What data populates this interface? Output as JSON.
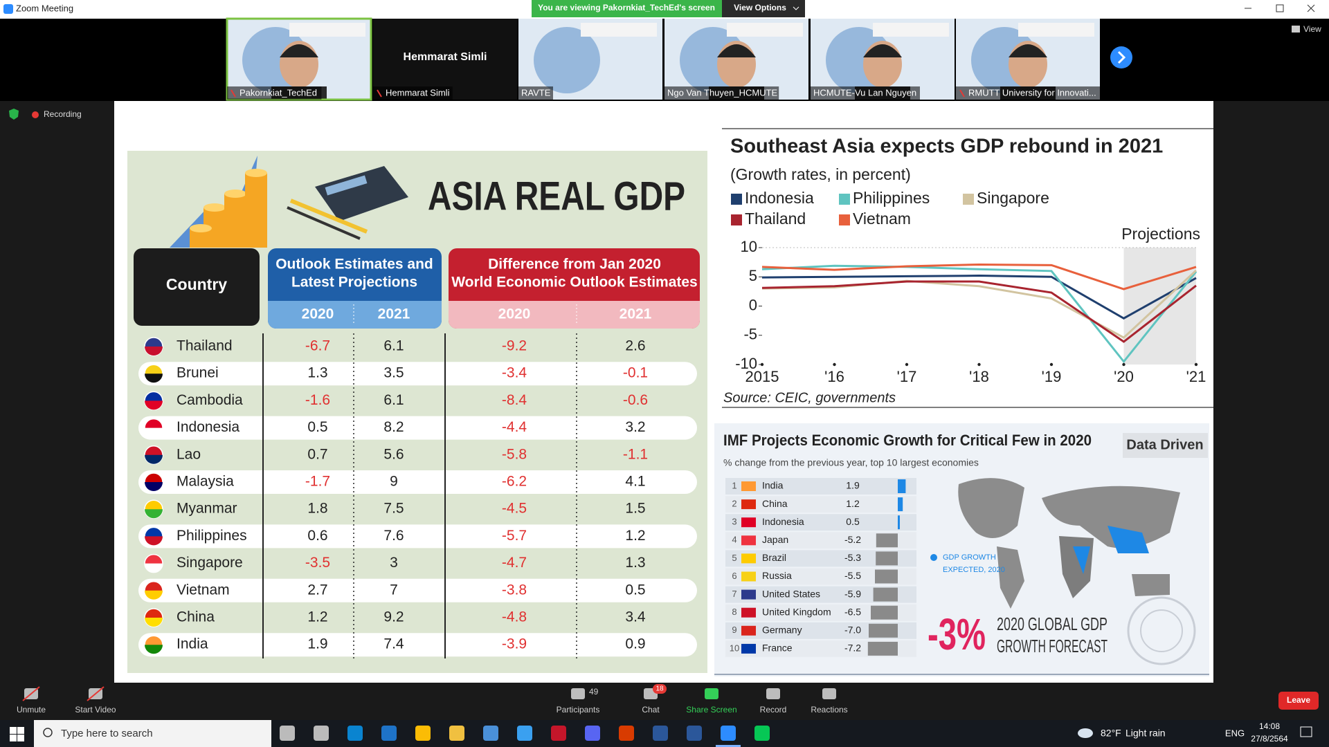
{
  "window": {
    "title": "Zoom Meeting",
    "view": "View"
  },
  "banner": {
    "text": "You are viewing Pakornkiat_TechEd's screen",
    "options": "View Options"
  },
  "recording": "Recording",
  "tiles": [
    {
      "label": "Pakornkiat_TechEd"
    },
    {
      "label": "Hemmarat Simli",
      "name": "Hemmarat Simli"
    },
    {
      "label": "RAVTE"
    },
    {
      "label": "Ngo Van Thuyen_HCMUTE"
    },
    {
      "label": "HCMUTE-Vu Lan Nguyen"
    },
    {
      "label": "RMUTT University for Innovati..."
    }
  ],
  "slide": {
    "table": {
      "title": "ASIA REAL GDP",
      "country_header": "Country",
      "outlook_header": [
        "Outlook Estimates and",
        "Latest Projections"
      ],
      "difference_header": [
        "Difference from Jan 2020",
        "World Economic Outlook Estimates"
      ],
      "years": [
        "2020",
        "2021",
        "2020",
        "2021"
      ],
      "rows": [
        {
          "country": "Thailand",
          "values": [
            "-6.7",
            "6.1",
            "-9.2",
            "2.6"
          ]
        },
        {
          "country": "Brunei",
          "values": [
            "1.3",
            "3.5",
            "-3.4",
            "-0.1"
          ]
        },
        {
          "country": "Cambodia",
          "values": [
            "-1.6",
            "6.1",
            "-8.4",
            "-0.6"
          ]
        },
        {
          "country": "Indonesia",
          "values": [
            "0.5",
            "8.2",
            "-4.4",
            "3.2"
          ]
        },
        {
          "country": "Lao",
          "values": [
            "0.7",
            "5.6",
            "-5.8",
            "-1.1"
          ]
        },
        {
          "country": "Malaysia",
          "values": [
            "-1.7",
            "9",
            "-6.2",
            "4.1"
          ]
        },
        {
          "country": "Myanmar",
          "values": [
            "1.8",
            "7.5",
            "-4.5",
            "1.5"
          ]
        },
        {
          "country": "Philippines",
          "values": [
            "0.6",
            "7.6",
            "-5.7",
            "1.2"
          ]
        },
        {
          "country": "Singapore",
          "values": [
            "-3.5",
            "3",
            "-4.7",
            "1.3"
          ]
        },
        {
          "country": "Vietnam",
          "values": [
            "2.7",
            "7",
            "-3.8",
            "0.5"
          ]
        },
        {
          "country": "China",
          "values": [
            "1.2",
            "9.2",
            "-4.8",
            "3.4"
          ]
        },
        {
          "country": "India",
          "values": [
            "1.9",
            "7.4",
            "-3.9",
            "0.9"
          ]
        }
      ]
    },
    "gdp_chart": {
      "type": "line",
      "title": "Southeast Asia expects GDP rebound in 2021",
      "subtitle": "(Growth rates, in percent)",
      "x": [
        2015,
        2016,
        2017,
        2018,
        2019,
        2020,
        2021
      ],
      "xlim": [
        2015,
        2021
      ],
      "xticks": [
        2015,
        {
          "value": 2016,
          "label": "'16"
        },
        {
          "value": 2017,
          "label": "'17"
        },
        {
          "value": 2018,
          "label": "'18"
        },
        {
          "value": 2019,
          "label": "'19"
        },
        {
          "value": 2020,
          "label": "'20"
        },
        {
          "value": 2021,
          "label": "'21"
        }
      ],
      "ylim": [
        -10,
        10
      ],
      "yticks": [
        -10,
        -5,
        0,
        5,
        10
      ],
      "projection_label": "Projections",
      "projection_start": 2020,
      "series": [
        {
          "name": "Indonesia",
          "color": "#1f3f6e",
          "values": [
            4.9,
            5.0,
            5.1,
            5.2,
            5.0,
            -2.1,
            4.8
          ]
        },
        {
          "name": "Philippines",
          "color": "#5fc4c0",
          "values": [
            6.3,
            6.9,
            6.7,
            6.3,
            6.0,
            -9.5,
            5.9
          ]
        },
        {
          "name": "Singapore",
          "color": "#d2c4a0",
          "values": [
            3.0,
            3.2,
            4.3,
            3.4,
            1.3,
            -5.4,
            6.1
          ]
        },
        {
          "name": "Thailand",
          "color": "#a8242f",
          "values": [
            3.1,
            3.4,
            4.2,
            4.2,
            2.3,
            -6.1,
            3.5
          ]
        },
        {
          "name": "Vietnam",
          "color": "#e8603c",
          "values": [
            6.7,
            6.2,
            6.8,
            7.1,
            7.0,
            2.9,
            6.7
          ]
        }
      ],
      "source": "Source: CEIC, governments"
    },
    "imf_chart": {
      "type": "bar",
      "title": "IMF Projects Economic Growth for Critical Few in 2020",
      "badge": "Data Driven",
      "subtitle": "% change from the previous year, top 10 largest economies",
      "ranks": [
        1,
        2,
        3,
        4,
        5,
        6,
        7,
        8,
        9,
        10
      ],
      "categories": [
        "India",
        "China",
        "Indonesia",
        "Japan",
        "Brazil",
        "Russia",
        "United States",
        "United Kingdom",
        "Germany",
        "France"
      ],
      "values": [
        1.9,
        1.2,
        0.5,
        -5.2,
        -5.3,
        -5.5,
        -5.9,
        -6.5,
        -7.0,
        -7.2
      ],
      "value_labels": [
        "1.9",
        "1.2",
        "0.5",
        "-5.2",
        "-5.3",
        "-5.5",
        "-5.9",
        "-6.5",
        "-7.0",
        "-7.2"
      ],
      "positive_color": "#1e88e5",
      "negative_color": "#8a8a8a",
      "map_legend": [
        "GDP GROWTH",
        "EXPECTED, 2020"
      ],
      "headline": "-3%",
      "headline_text": [
        "2020 GLOBAL GDP",
        "GROWTH FORECAST"
      ]
    }
  },
  "toolbar": {
    "unmute": "Unmute",
    "start_video": "Start Video",
    "participants": "Participants",
    "participants_count": 49,
    "chat": "Chat",
    "chat_unread": 18,
    "share_screen": "Share Screen",
    "record": "Record",
    "reactions": "Reactions",
    "leave": "Leave"
  },
  "taskbar": {
    "search": "Type here to search",
    "temperature": "82°F",
    "weather": "Light rain",
    "language": "ENG",
    "time": "14:08",
    "date": "27/8/2564"
  }
}
